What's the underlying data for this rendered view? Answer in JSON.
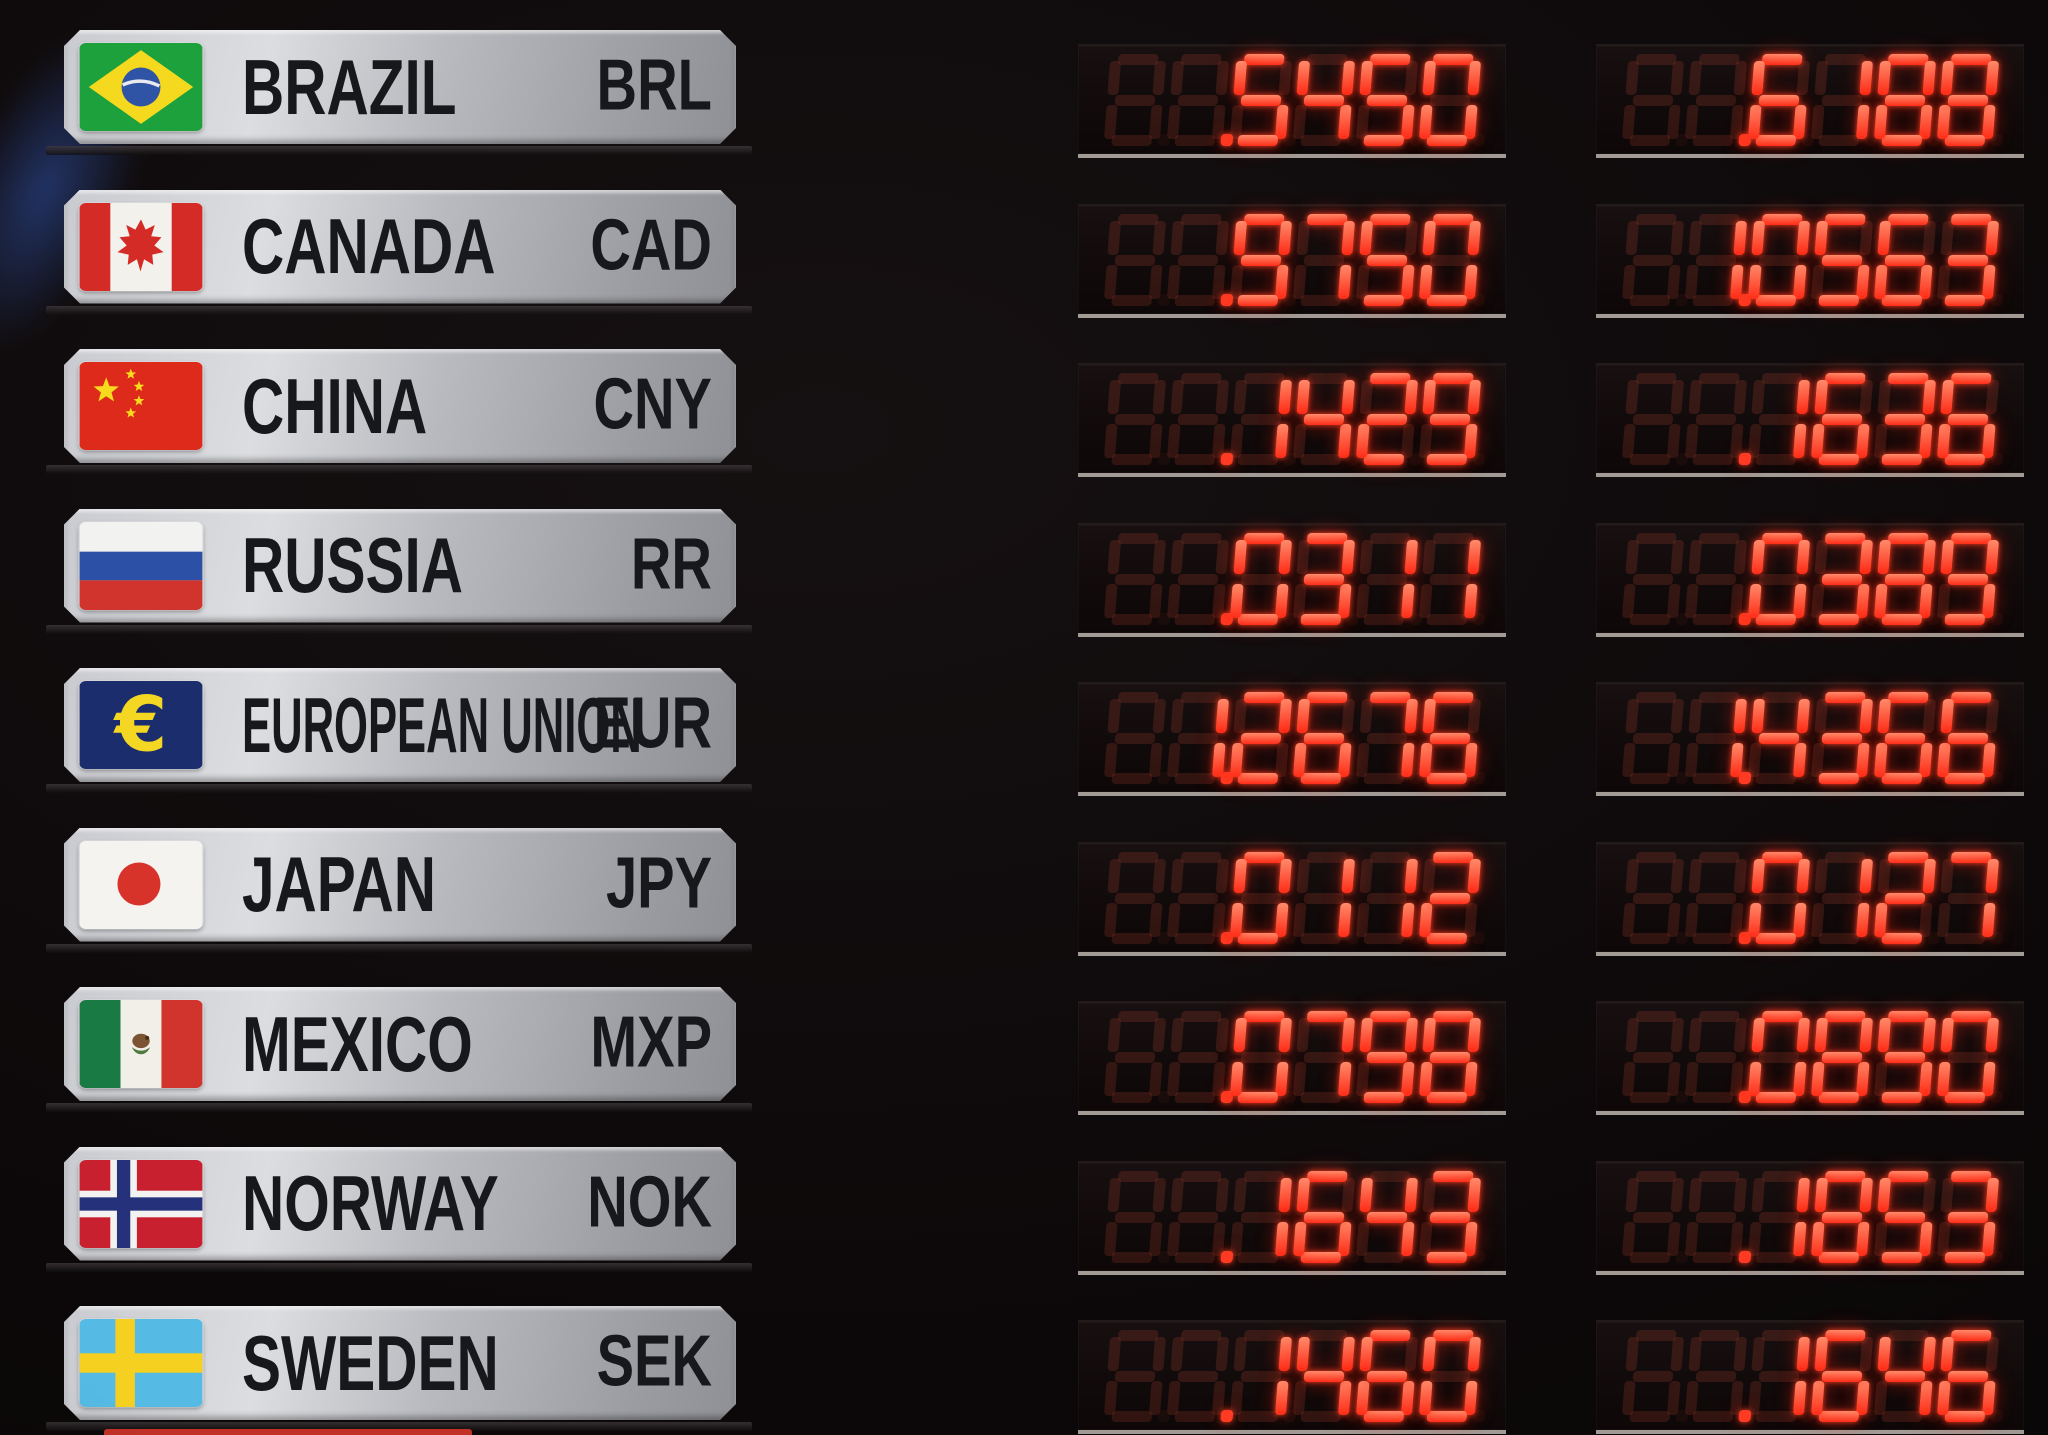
{
  "board": {
    "rate_columns": 2,
    "rows": [
      {
        "country": "BRAZIL",
        "code": "BRL",
        "flag": "brazil",
        "rates": [
          ".5450",
          ".6188"
        ]
      },
      {
        "country": "CANADA",
        "code": "CAD",
        "flag": "canada",
        "rates": [
          ".9750",
          "1.0563"
        ]
      },
      {
        "country": "CHINA",
        "code": "CNY",
        "flag": "china",
        "rates": [
          ".1429",
          ".1636"
        ]
      },
      {
        "country": "RUSSIA",
        "code": "RR",
        "flag": "russia",
        "rates": [
          ".0311",
          ".0389"
        ]
      },
      {
        "country": "EUROPEAN UNION",
        "code": "EUR",
        "flag": "european-union",
        "rates": [
          "1.2676",
          "1.4366"
        ]
      },
      {
        "country": "JAPAN",
        "code": "JPY",
        "flag": "japan",
        "rates": [
          ".0112",
          ".0127"
        ]
      },
      {
        "country": "MEXICO",
        "code": "MXP",
        "flag": "mexico",
        "rates": [
          ".0798",
          ".0890"
        ]
      },
      {
        "country": "NORWAY",
        "code": "NOK",
        "flag": "norway",
        "rates": [
          ".1643",
          ".1853"
        ]
      },
      {
        "country": "SWEDEN",
        "code": "SEK",
        "flag": "sweden",
        "rates": [
          ".1460",
          ".1646"
        ]
      }
    ],
    "display": {
      "digits_per_display": 6,
      "unlit_positions_show_ghost_eights": true
    },
    "colors": {
      "led_red": "#ff3a26",
      "led_ghost": "rgba(255,92,66,0.15)",
      "plate_silver": "#c6c7cb",
      "background": "#0b0809",
      "eu_plate_navy": "#1c2d6e",
      "sweden_flag_blue": "#55bbe4"
    }
  }
}
